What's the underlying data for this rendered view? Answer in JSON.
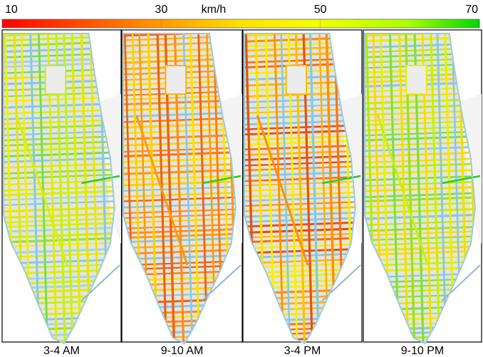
{
  "colorbar": {
    "range": [
      10,
      70
    ],
    "ticks": [
      10,
      30,
      50,
      70
    ],
    "unit": "km/h"
  },
  "panels": [
    {
      "caption": "3-4 AM"
    },
    {
      "caption": "9-10 AM"
    },
    {
      "caption": "3-4 PM"
    },
    {
      "caption": "9-10 PM"
    }
  ]
}
